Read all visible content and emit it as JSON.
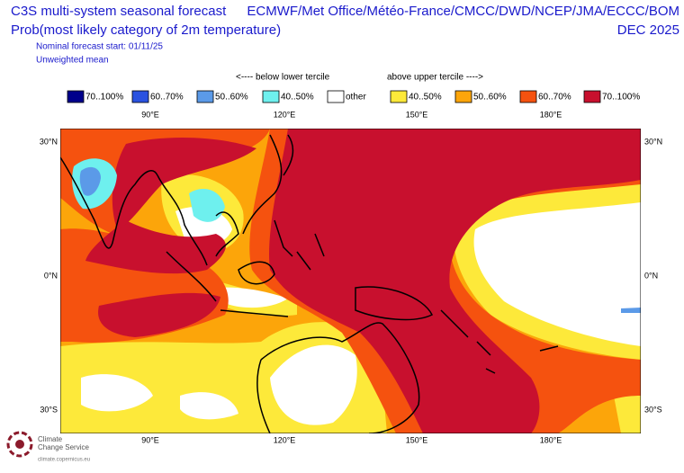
{
  "header": {
    "title": "C3S multi-system seasonal forecast",
    "subtitle": "Prob(most likely category of 2m temperature)",
    "start": "Nominal forecast start: 01/11/25",
    "note": "Unweighted mean",
    "centres": "ECMWF/Met Office/Météo-France/CMCC/DWD/NCEP/JMA/ECCC/BOM",
    "month": "DEC 2025"
  },
  "legend": {
    "lower_label": "<---- below lower tercile",
    "upper_label": "above upper tercile ---->",
    "items": [
      {
        "label": "70..100%",
        "color": "#00008b"
      },
      {
        "label": "60..70%",
        "color": "#2a52e0"
      },
      {
        "label": "50..60%",
        "color": "#5b9ae8"
      },
      {
        "label": "40..50%",
        "color": "#6ef0ee"
      },
      {
        "label": "other",
        "color": "#ffffff"
      },
      {
        "label": "40..50%",
        "color": "#fde93a"
      },
      {
        "label": "50..60%",
        "color": "#fca50a"
      },
      {
        "label": "60..70%",
        "color": "#f5520f"
      },
      {
        "label": "70..100%",
        "color": "#c8102e"
      }
    ]
  },
  "map": {
    "lon_labels": [
      "90°E",
      "120°E",
      "150°E",
      "180°E"
    ],
    "lat_labels": [
      "30°N",
      "0°N",
      "30°S"
    ]
  },
  "logo": {
    "lines": [
      "Climate",
      "Change Service"
    ],
    "url": "climate.copernicus.eu"
  }
}
